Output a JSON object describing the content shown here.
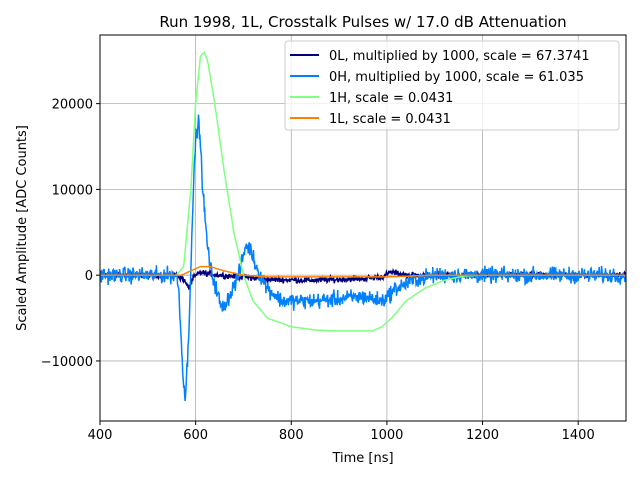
{
  "chart_data": {
    "type": "line",
    "title": "Run 1998, 1L, Crosstalk Pulses w/ 17.0 dB Attenuation",
    "xlabel": "Time [ns]",
    "ylabel": "Scaled Amplitude [ADC Counts]",
    "xlim": [
      400,
      1500
    ],
    "ylim": [
      -17000,
      28000
    ],
    "xticks": [
      400,
      600,
      800,
      1000,
      1200,
      1400
    ],
    "xtick_labels": [
      "400",
      "600",
      "800",
      "1000",
      "1200",
      "1400"
    ],
    "yticks": [
      -10000,
      0,
      10000,
      20000
    ],
    "ytick_labels": [
      "−10000",
      "0",
      "10000",
      "20000"
    ],
    "grid": true,
    "legend_position": "top-right",
    "series": [
      {
        "name": "0L, multiplied by 1000,  scale = 67.3741",
        "color": "#00007f",
        "noise": 250,
        "x": [
          400,
          560,
          575,
          585,
          595,
          610,
          650,
          700,
          750,
          850,
          950,
          990,
          1010,
          1040,
          1500
        ],
        "y": [
          0,
          0,
          -500,
          -1500,
          -300,
          300,
          0,
          -200,
          -500,
          -600,
          -400,
          -200,
          400,
          0,
          0
        ]
      },
      {
        "name": "0H, multiplied by 1000,  scale = 61.035",
        "color": "#0080ff",
        "noise": 700,
        "x": [
          400,
          560,
          565,
          572,
          578,
          585,
          592,
          600,
          607,
          615,
          622,
          630,
          640,
          655,
          670,
          690,
          705,
          715,
          730,
          750,
          780,
          850,
          950,
          990,
          1020,
          1060,
          1100,
          1500
        ],
        "y": [
          0,
          0,
          -2000,
          -10000,
          -14500,
          -8000,
          5000,
          16000,
          18000,
          10000,
          5000,
          1000,
          -1000,
          -4000,
          -2500,
          0,
          3500,
          3000,
          500,
          -1500,
          -3000,
          -3000,
          -2500,
          -3000,
          -1500,
          -500,
          0,
          0
        ]
      },
      {
        "name": "1H,  scale = 0.0431",
        "color": "#80ff80",
        "noise": 0,
        "x": [
          400,
          560,
          575,
          590,
          600,
          610,
          618,
          625,
          640,
          660,
          680,
          700,
          720,
          750,
          800,
          850,
          900,
          970,
          990,
          1010,
          1040,
          1080,
          1120,
          1160,
          1200,
          1500
        ],
        "y": [
          0,
          0,
          1000,
          10000,
          20000,
          25500,
          26000,
          25000,
          20000,
          12000,
          5000,
          0,
          -3000,
          -5000,
          -6000,
          -6400,
          -6500,
          -6500,
          -6000,
          -5000,
          -3000,
          -1500,
          -600,
          -100,
          0,
          0
        ]
      },
      {
        "name": "1L,  scale = 0.0431",
        "color": "#ff8000",
        "noise": 0,
        "x": [
          400,
          570,
          590,
          610,
          630,
          660,
          700,
          750,
          1000,
          1100,
          1500
        ],
        "y": [
          0,
          0,
          500,
          1000,
          1000,
          500,
          0,
          -200,
          -200,
          0,
          0
        ]
      }
    ]
  }
}
